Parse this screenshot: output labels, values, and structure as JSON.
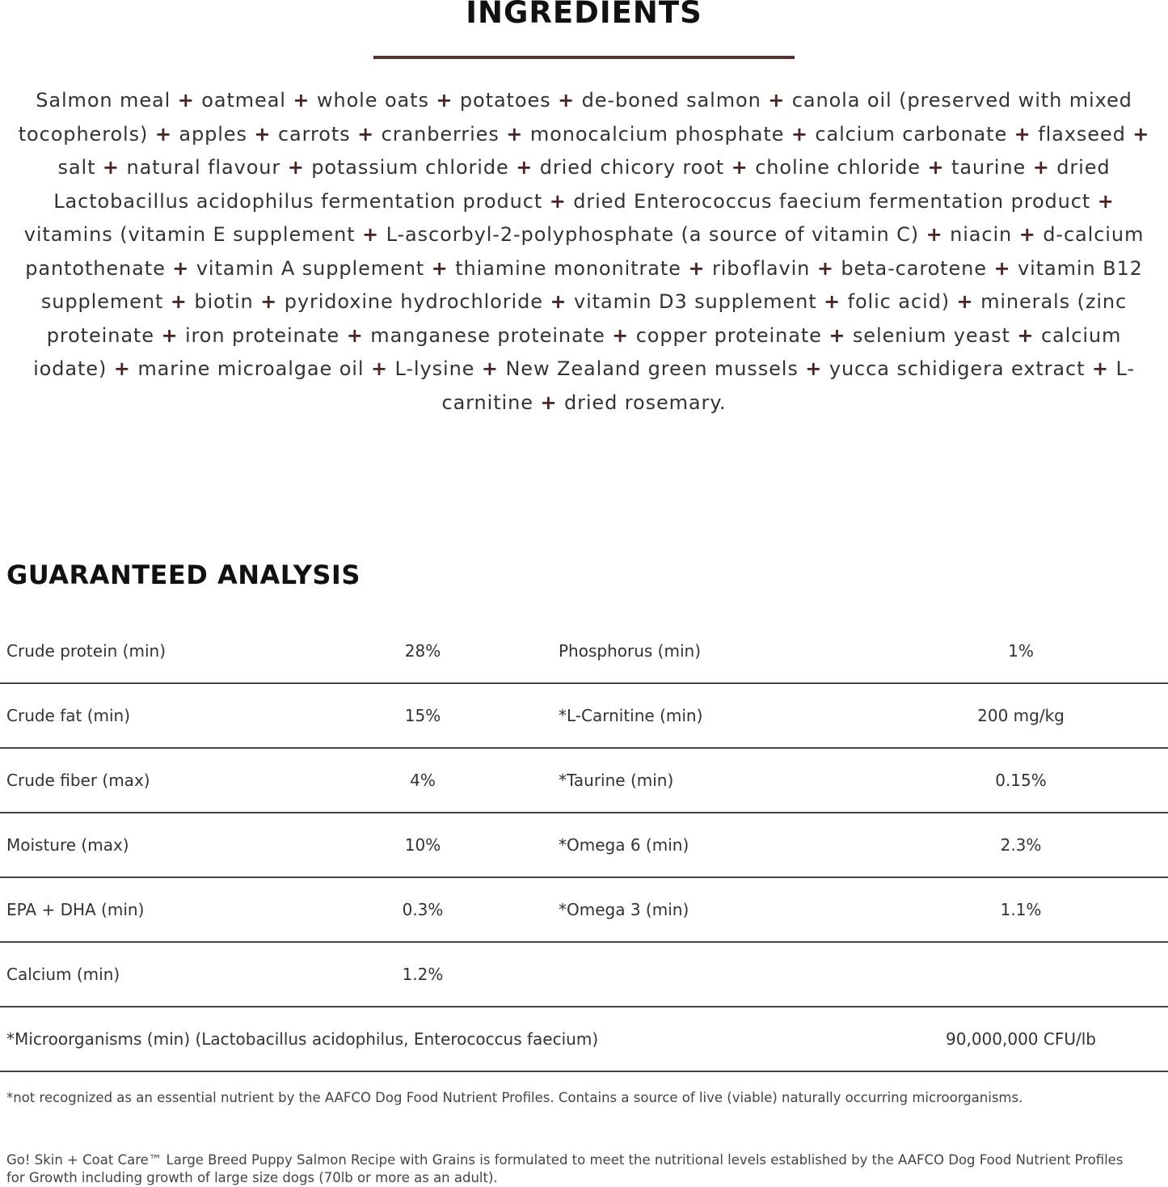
{
  "ingredients": {
    "title": "INGREDIENTS",
    "separator": "+",
    "accent_color": "#5a2e2e",
    "items": [
      "Salmon meal",
      "oatmeal",
      "whole oats",
      "potatoes",
      "de-boned salmon",
      "canola oil (preserved with mixed tocopherols)",
      "apples",
      "carrots",
      "cranberries",
      "monocalcium phosphate",
      "calcium carbonate",
      "flaxseed",
      "salt",
      "natural flavour",
      "potassium chloride",
      "dried chicory root",
      "choline chloride",
      "taurine",
      "dried Lactobacillus acidophilus fermentation product",
      "dried Enterococcus faecium fermentation product",
      "vitamins (vitamin E supplement",
      "L-ascorbyl-2-polyphosphate (a source of vitamin C)",
      "niacin",
      "d-calcium pantothenate",
      "vitamin A supplement",
      "thiamine mononitrate",
      "riboflavin",
      "beta-carotene",
      "vitamin B12 supplement",
      "biotin",
      "pyridoxine hydrochloride",
      "vitamin D3 supplement",
      "folic acid)",
      "minerals (zinc proteinate",
      "iron proteinate",
      "manganese proteinate",
      "copper proteinate",
      "selenium yeast",
      "calcium iodate)",
      "marine microalgae oil",
      "L-lysine",
      "New Zealand green mussels",
      "yucca schidigera extract",
      "L-carnitine",
      "dried rosemary."
    ]
  },
  "analysis": {
    "title": "GUARANTEED ANALYSIS",
    "rows": [
      {
        "label": "Crude protein (min)",
        "value": "28%",
        "label2": "Phosphorus (min)",
        "value2": "1%"
      },
      {
        "label": "Crude fat (min)",
        "value": "15%",
        "label2": "*L-Carnitine (min)",
        "value2": "200 mg/kg"
      },
      {
        "label": "Crude fiber (max)",
        "value": "4%",
        "label2": "*Taurine (min)",
        "value2": "0.15%"
      },
      {
        "label": "Moisture (max)",
        "value": "10%",
        "label2": "*Omega 6 (min)",
        "value2": "2.3%"
      },
      {
        "label": "EPA + DHA (min)",
        "value": "0.3%",
        "label2": "*Omega 3 (min)",
        "value2": "1.1%"
      },
      {
        "label": "Calcium (min)",
        "value": "1.2%",
        "label2": "",
        "value2": ""
      }
    ],
    "wide_row": {
      "label": "*Microorganisms (min) (Lactobacillus acidophilus, Enterococcus faecium)",
      "value": "90,000,000 CFU/lb"
    }
  },
  "footnote": "*not recognized as an essential nutrient by the AAFCO Dog Food Nutrient Profiles. Contains a source of live (viable) naturally occurring microorganisms.",
  "statement": "Go! Skin + Coat Care™ Large Breed Puppy Salmon Recipe with Grains is formulated to meet the nutritional levels established by the AAFCO Dog Food Nutrient Profiles for Growth including growth of large size dogs (70lb or more as an adult)."
}
